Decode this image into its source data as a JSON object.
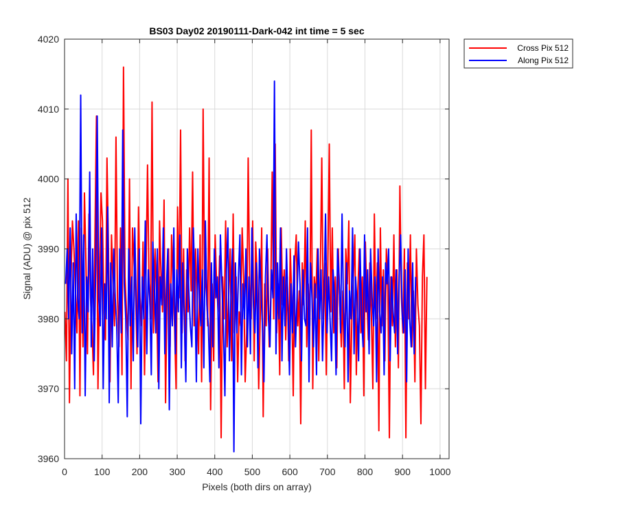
{
  "chart_data": {
    "type": "line",
    "title": "BS03 Day02 20190111-Dark-042 int time = 5 sec",
    "xlabel": "Pixels (both dirs on array)",
    "ylabel": "Signal (ADU) @ pix 512",
    "xlim": [
      0,
      1024
    ],
    "ylim": [
      3960,
      4020
    ],
    "xticks": [
      0,
      100,
      200,
      300,
      400,
      500,
      600,
      700,
      800,
      900,
      1000
    ],
    "yticks": [
      3960,
      3970,
      3980,
      3990,
      4000,
      4010,
      4020
    ],
    "grid": true,
    "legend_position": "outside-top-right",
    "series": [
      {
        "name": "Cross Pix 512",
        "color": "#ff0000",
        "x_start": 1,
        "x_step": 4,
        "values": [
          3981,
          3974,
          4000,
          3968,
          3985,
          3994,
          3990,
          3984,
          3978,
          3994,
          3969,
          3993,
          3976,
          3998,
          3988,
          3975,
          3995,
          3983,
          3979,
          3972,
          3992,
          4009,
          3970,
          3985,
          3998,
          3994,
          3981,
          3977,
          4003,
          3990,
          3971,
          3992,
          3985,
          3979,
          4006,
          3983,
          3976,
          3993,
          3972,
          4016,
          3986,
          3981,
          3977,
          4000,
          3970,
          3993,
          3988,
          3984,
          3975,
          3996,
          3983,
          3979,
          3991,
          3972,
          3987,
          4002,
          3985,
          3980,
          4011,
          3978,
          3990,
          3983,
          3971,
          3994,
          3986,
          3981,
          3997,
          3968,
          3984,
          3990,
          3976,
          3992,
          3985,
          3979,
          3970,
          3996,
          3983,
          4007,
          3978,
          3990,
          3974,
          3987,
          3981,
          3993,
          3984,
          4001,
          3979,
          3990,
          3982,
          3975,
          3992,
          3971,
          4010,
          3983,
          3987,
          3979,
          4003,
          3967,
          3985,
          3974,
          3992,
          3985,
          3981,
          3989,
          3963,
          3986,
          3980,
          3994,
          3976,
          3983,
          3990,
          3974,
          3995,
          3978,
          3986,
          3971,
          3981,
          3979,
          3993,
          3986,
          3971,
          3978,
          4003,
          3985,
          3980,
          3994,
          3974,
          3991,
          3986,
          3970,
          3980,
          3993,
          3966,
          3985,
          3979,
          3990,
          3976,
          3983,
          4001,
          3980,
          4005,
          3978,
          3985,
          3972,
          3993,
          3982,
          3987,
          3977,
          3986,
          3974,
          3990,
          3983,
          3969,
          3988,
          3992,
          3979,
          3984,
          3965,
          3988,
          3982,
          3994,
          3976,
          3985,
          3979,
          4007,
          3970,
          3986,
          3983,
          3990,
          3974,
          3986,
          4003,
          3980,
          3988,
          3972,
          3987,
          4005,
          3981,
          3993,
          3978,
          3986,
          3973,
          3990,
          3982,
          3976,
          3984,
          3970,
          3990,
          3985,
          3994,
          3968,
          3980,
          3986,
          3992,
          3972,
          3984,
          3990,
          3978,
          3986,
          3969,
          3991,
          3983,
          3977,
          3988,
          3981,
          3970,
          3995,
          3980,
          3988,
          3964,
          3993,
          3979,
          3987,
          3974,
          3990,
          3984,
          3963,
          3986,
          3979,
          3992,
          3976,
          3987,
          3973,
          3999,
          3983,
          3978,
          3990,
          3963,
          3988,
          3980,
          3992,
          3976,
          3984,
          3971,
          3990,
          3982,
          3979,
          3965,
          3986,
          3992,
          3970,
          3986
        ]
      },
      {
        "name": "Along Pix 512",
        "color": "#0000ff",
        "x_start": 3,
        "x_step": 4,
        "values": [
          3985,
          3990,
          3980,
          3993,
          3975,
          3988,
          3970,
          3995,
          3983,
          3980,
          4012,
          3978,
          3992,
          3969,
          3986,
          3981,
          4001,
          3976,
          3990,
          3974,
          3987,
          4009,
          3983,
          3979,
          3993,
          3970,
          3985,
          3980,
          3996,
          3968,
          3988,
          3976,
          3990,
          3983,
          3979,
          3968,
          3990,
          3978,
          4007,
          3985,
          3980,
          3966,
          3990,
          3979,
          3986,
          3974,
          3993,
          3982,
          3976,
          3990,
          3965,
          3986,
          3980,
          3994,
          3975,
          3987,
          3983,
          3972,
          3991,
          3985,
          3978,
          3990,
          3970,
          3986,
          3982,
          3993,
          3975,
          3984,
          3990,
          3967,
          3985,
          3979,
          3993,
          3975,
          3987,
          3981,
          3992,
          3973,
          3988,
          3980,
          3971,
          3990,
          3984,
          3979,
          3976,
          3993,
          3985,
          3971,
          3990,
          3983,
          3979,
          3987,
          3973,
          3994,
          3982,
          3979,
          3971,
          3988,
          3976,
          3990,
          3983,
          3986,
          3973,
          3992,
          3985,
          3979,
          3969,
          3987,
          3993,
          3974,
          3983,
          3990,
          3961,
          3988,
          3978,
          3986,
          3992,
          3972,
          3985,
          3980,
          3990,
          3976,
          3986,
          3975,
          3993,
          3982,
          3978,
          3988,
          3973,
          3990,
          3984,
          3979,
          3971,
          3986,
          3992,
          3980,
          3976,
          3987,
          3983,
          4014,
          3975,
          3988,
          3980,
          3993,
          3974,
          3986,
          3979,
          3990,
          3982,
          3972,
          3985,
          3978,
          3989,
          3976,
          3983,
          3991,
          3985,
          3974,
          3987,
          3980,
          3979,
          3993,
          3971,
          3988,
          3983,
          3976,
          3985,
          3972,
          3990,
          3980,
          3987,
          3974,
          3983,
          3995,
          3978,
          3986,
          3980,
          3974,
          3987,
          3983,
          3972,
          3990,
          3986,
          3978,
          3995,
          3981,
          3976,
          3988,
          3971,
          3984,
          3980,
          3993,
          3975,
          3986,
          3982,
          3974,
          3990,
          3980,
          3976,
          3992,
          3981,
          3987,
          3975,
          3990,
          3983,
          3979,
          3986,
          3971,
          3990,
          3981,
          3978,
          3986,
          3972,
          3988,
          3985,
          3990,
          3974,
          3986,
          3981,
          3978,
          3987,
          3975,
          3986,
          3992,
          3981,
          3978,
          3987,
          3971,
          3990,
          3980,
          3976,
          3988,
          3975,
          3986
        ]
      }
    ]
  }
}
